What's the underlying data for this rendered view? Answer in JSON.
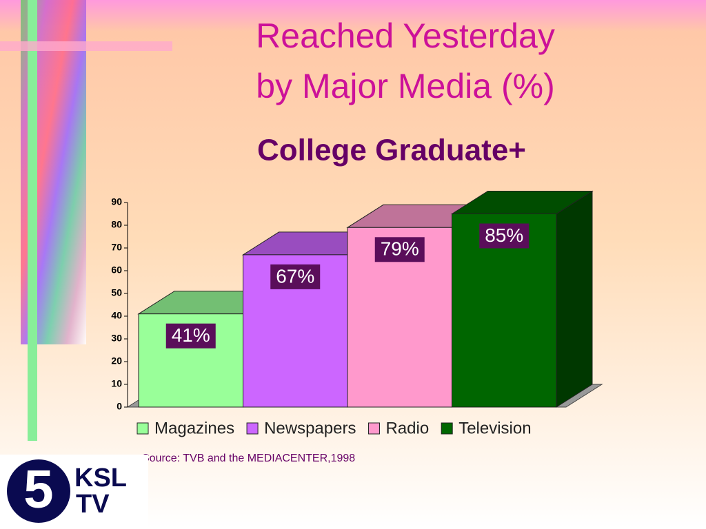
{
  "chart_data": {
    "type": "bar3d",
    "title": [
      "Reached Yesterday",
      "by Major Media (%)"
    ],
    "subtitle": "College Graduate+",
    "categories": [
      "Magazines",
      "Newspapers",
      "Radio",
      "Television"
    ],
    "values": [
      41,
      67,
      79,
      85
    ],
    "value_labels": [
      "41%",
      "67%",
      "79%",
      "85%"
    ],
    "colors": [
      "#99ff99",
      "#cc66ff",
      "#ff99cc",
      "#006600"
    ],
    "ylim": [
      0,
      90
    ],
    "yticks": [
      0,
      10,
      20,
      30,
      40,
      50,
      60,
      70,
      80,
      90
    ],
    "legend": "bottom",
    "source": "Source: TVB and the MEDIACENTER,1998"
  },
  "logo": {
    "number": "5",
    "line1": "KSL",
    "line2": "TV"
  }
}
